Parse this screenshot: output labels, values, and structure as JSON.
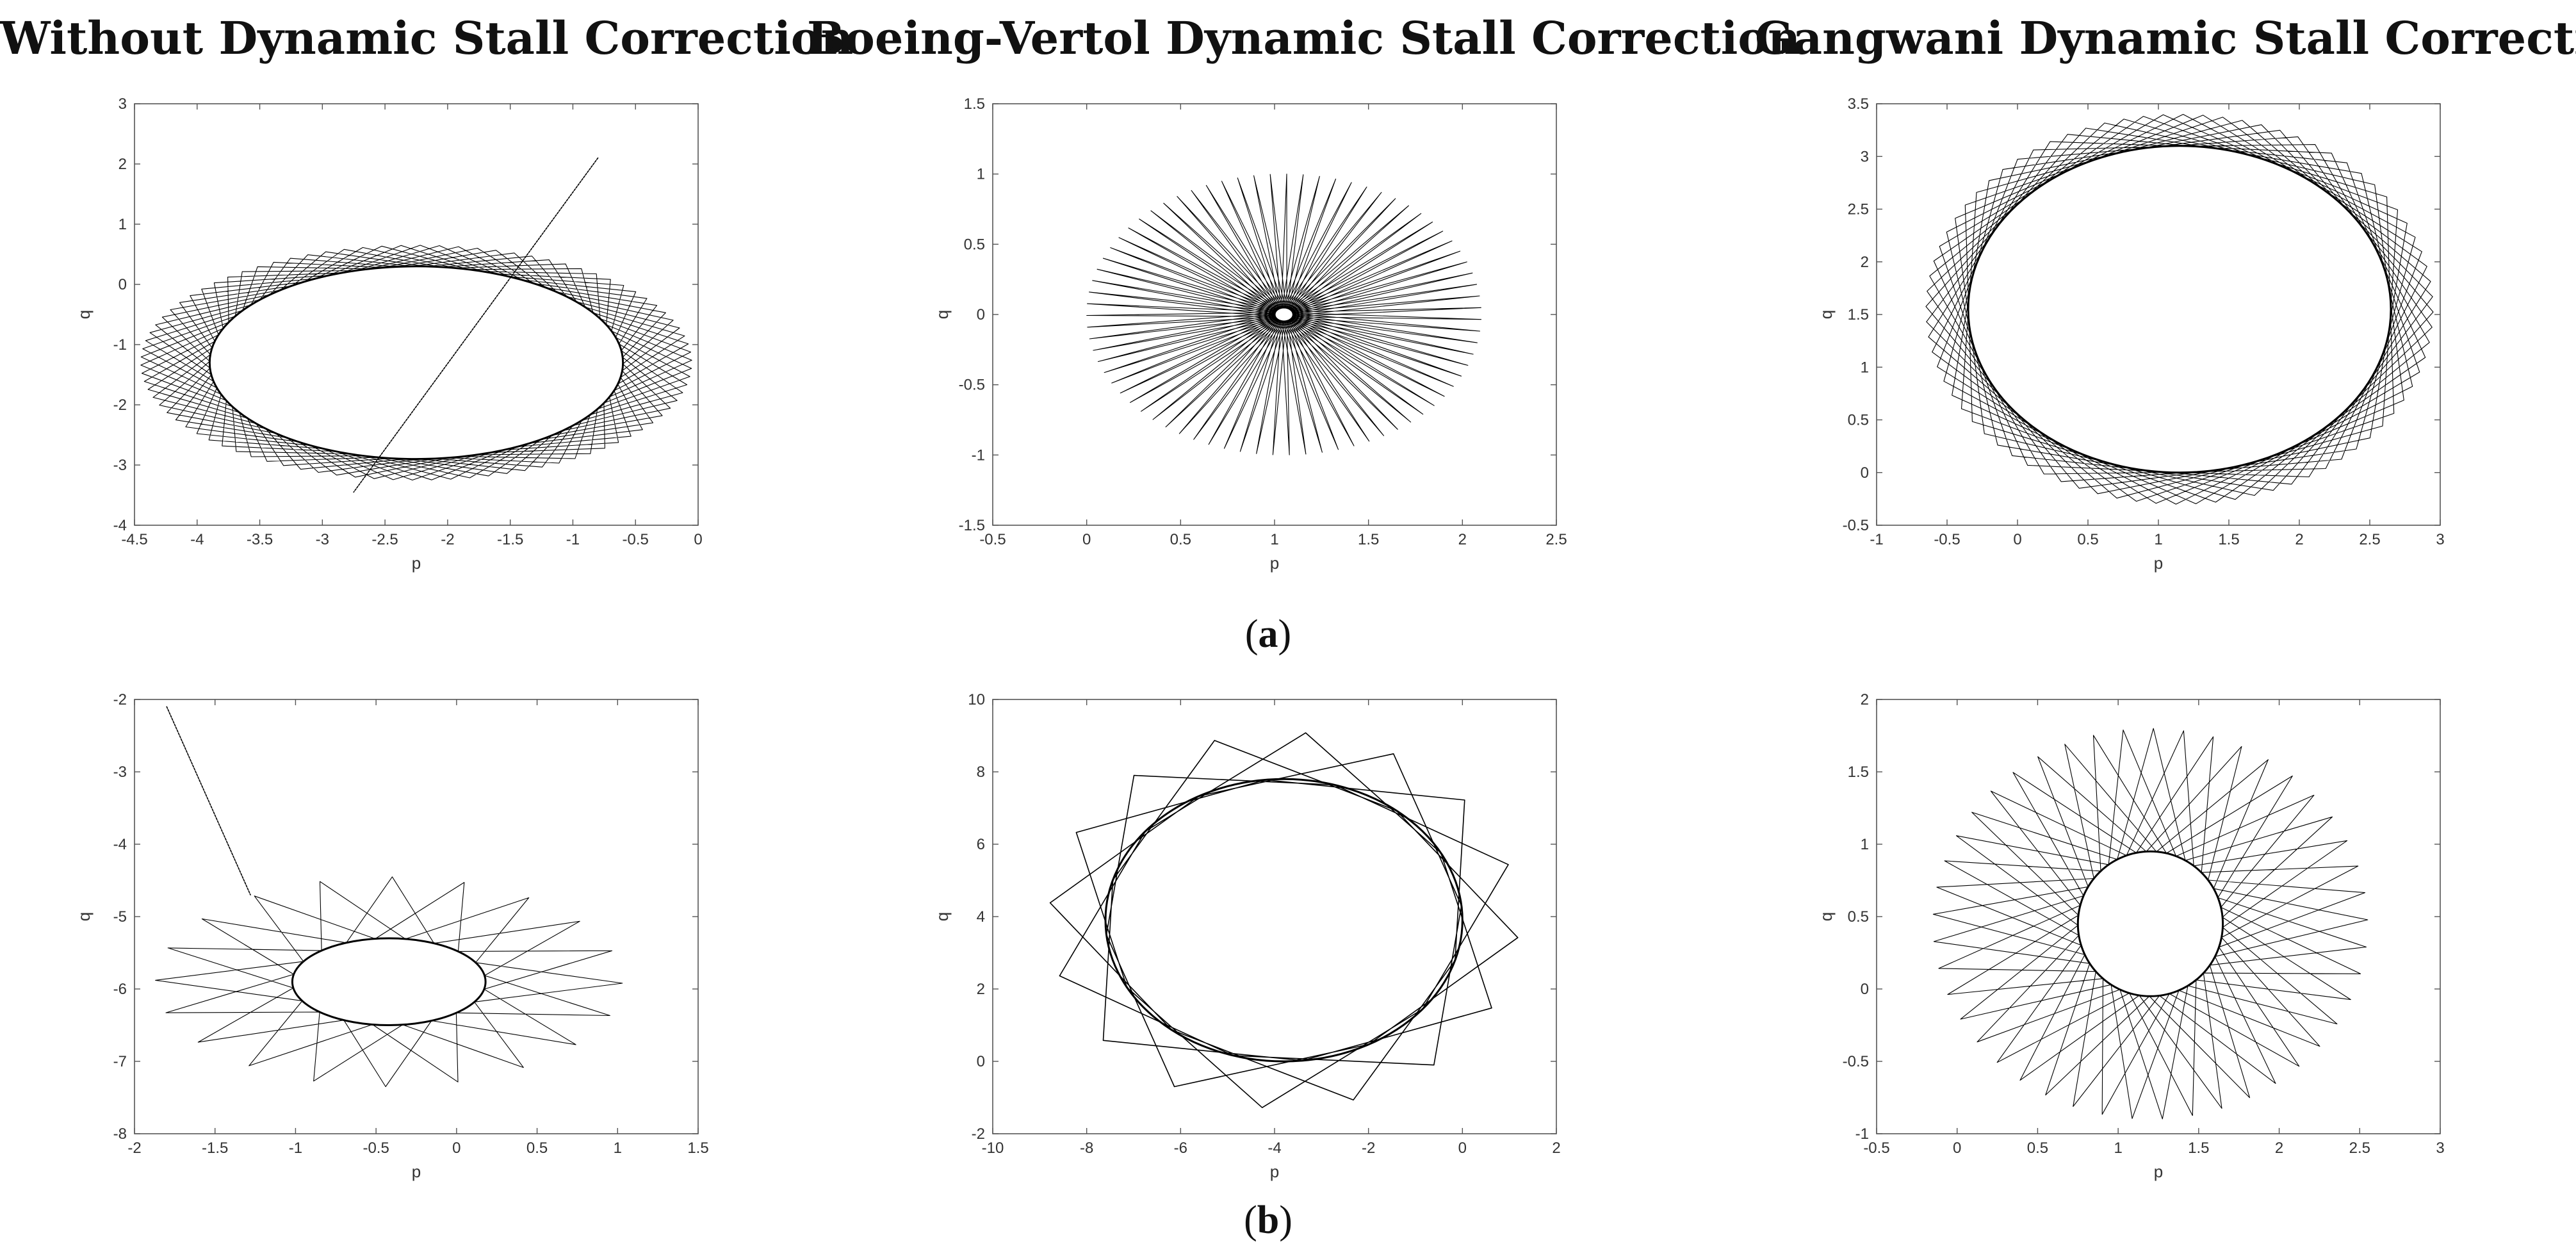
{
  "column_titles": [
    "Without Dynamic Stall Correction",
    "Boeing-Vertol Dynamic Stall Correction",
    "Gangwani Dynamic Stall Correction"
  ],
  "row_labels": [
    {
      "open": "(",
      "letter": "a",
      "close": ")"
    },
    {
      "open": "(",
      "letter": "b",
      "close": ")"
    }
  ],
  "chart_data": [
    {
      "type": "scatter",
      "row": "a",
      "column": "Without Dynamic Stall Correction",
      "xlabel": "p",
      "ylabel": "q",
      "xlim": [
        -4.5,
        0
      ],
      "ylim": [
        -4,
        3
      ],
      "xticks": [
        "-4.5",
        "-4",
        "-3.5",
        "-3",
        "-2.5",
        "-2",
        "-1.5",
        "-1",
        "-0.5",
        "0"
      ],
      "yticks": [
        "-4",
        "-3",
        "-2",
        "-1",
        "0",
        "1",
        "2",
        "3"
      ],
      "trajectory": {
        "center": [
          -2.25,
          -1.3
        ],
        "outer_radius": [
          2.2,
          1.95
        ],
        "inner_radius": [
          1.65,
          1.6
        ],
        "petals": 90,
        "turns": 11
      },
      "transient_line": {
        "from": [
          -0.8,
          2.1
        ],
        "to": [
          -2.75,
          -3.45
        ]
      }
    },
    {
      "type": "scatter",
      "row": "a",
      "column": "Boeing-Vertol Dynamic Stall Correction",
      "xlabel": "p",
      "ylabel": "q",
      "xlim": [
        -0.5,
        2.5
      ],
      "ylim": [
        -1.5,
        1.5
      ],
      "xticks": [
        "-0.5",
        "0",
        "0.5",
        "1",
        "1.5",
        "2",
        "2.5"
      ],
      "yticks": [
        "-1.5",
        "-1",
        "-0.5",
        "0",
        "0.5",
        "1",
        "1.5"
      ],
      "trajectory": {
        "center": [
          1.05,
          0.0
        ],
        "outer_radius": [
          1.05,
          1.0
        ],
        "inner_radius": [
          0.05,
          0.05
        ],
        "petals": 75,
        "turns": 7
      }
    },
    {
      "type": "scatter",
      "row": "a",
      "column": "Gangwani Dynamic Stall Correction",
      "xlabel": "p",
      "ylabel": "q",
      "xlim": [
        -1,
        3
      ],
      "ylim": [
        -0.5,
        3.5
      ],
      "xticks": [
        "-1",
        "-0.5",
        "0",
        "0.5",
        "1",
        "1.5",
        "2",
        "2.5",
        "3"
      ],
      "yticks": [
        "-0.5",
        "0",
        "0.5",
        "1",
        "1.5",
        "2",
        "2.5",
        "3",
        "3.5"
      ],
      "trajectory": {
        "center": [
          1.15,
          1.55
        ],
        "outer_radius": [
          1.8,
          1.85
        ],
        "inner_radius": [
          1.5,
          1.55
        ],
        "petals": 80,
        "turns": 13
      }
    },
    {
      "type": "scatter",
      "row": "b",
      "column": "Without Dynamic Stall Correction",
      "xlabel": "p",
      "ylabel": "q",
      "xlim": [
        -2,
        1.5
      ],
      "ylim": [
        -8,
        -2
      ],
      "xticks": [
        "-2",
        "-1.5",
        "-1",
        "-0.5",
        "0",
        "0.5",
        "1",
        "1.5"
      ],
      "yticks": [
        "-8",
        "-7",
        "-6",
        "-5",
        "-4",
        "-3",
        "-2"
      ],
      "trajectory": {
        "center": [
          -0.42,
          -5.9
        ],
        "outer_radius": [
          1.45,
          1.45
        ],
        "inner_radius": [
          0.6,
          0.6
        ],
        "petals": 60,
        "turns": 9
      },
      "transient_line": {
        "from": [
          -1.8,
          -2.1
        ],
        "to": [
          -1.28,
          -4.7
        ]
      }
    },
    {
      "type": "scatter",
      "row": "b",
      "column": "Boeing-Vertol Dynamic Stall Correction",
      "xlabel": "p",
      "ylabel": "q",
      "xlim": [
        -10,
        2
      ],
      "ylim": [
        -2,
        10
      ],
      "xticks": [
        "-10",
        "-8",
        "-6",
        "-4",
        "-2",
        "0",
        "2"
      ],
      "yticks": [
        "-2",
        "0",
        "2",
        "4",
        "6",
        "8",
        "10"
      ],
      "trajectory": {
        "center": [
          -3.8,
          3.9
        ],
        "outer_radius": [
          5.0,
          5.2
        ],
        "inner_radius": [
          3.8,
          3.9
        ],
        "petals": 16,
        "turns": 5
      }
    },
    {
      "type": "scatter",
      "row": "b",
      "column": "Gangwani Dynamic Stall Correction",
      "xlabel": "p",
      "ylabel": "q",
      "xlim": [
        -0.5,
        3
      ],
      "ylim": [
        -1,
        2
      ],
      "xticks": [
        "-0.5",
        "0",
        "0.5",
        "1",
        "1.5",
        "2",
        "2.5",
        "3"
      ],
      "yticks": [
        "-1",
        "-0.5",
        "0",
        "0.5",
        "1",
        "1.5",
        "2"
      ],
      "trajectory": {
        "center": [
          1.2,
          0.45
        ],
        "outer_radius": [
          1.35,
          1.35
        ],
        "inner_radius": [
          0.45,
          0.5
        ],
        "petals": 45,
        "turns": 7
      }
    }
  ]
}
